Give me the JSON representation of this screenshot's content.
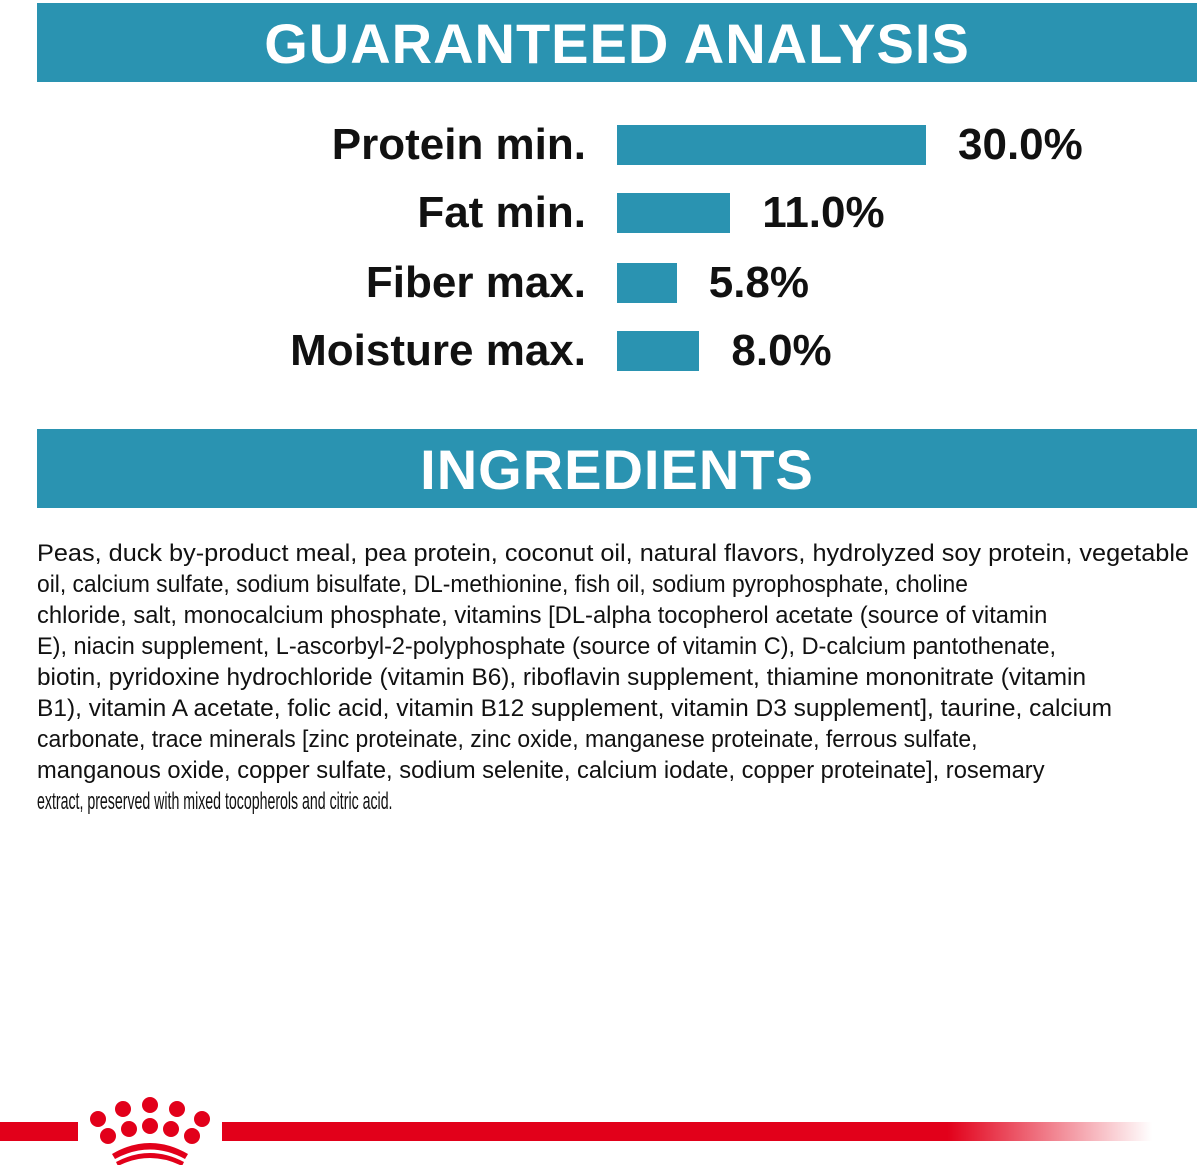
{
  "guaranteed_analysis": {
    "title": "GUARANTEED ANALYSIS"
  },
  "chart_data": {
    "type": "bar",
    "orientation": "horizontal",
    "title": "GUARANTEED ANALYSIS",
    "categories": [
      "Protein min.",
      "Fat min.",
      "Fiber max.",
      "Moisture max."
    ],
    "values": [
      30.0,
      11.0,
      5.8,
      8.0
    ],
    "value_labels": [
      "30.0%",
      "11.0%",
      "5.8%",
      "8.0%"
    ],
    "unit": "%",
    "grid": false,
    "bar_color": "#2a93b1"
  },
  "ingredients": {
    "title": "INGREDIENTS",
    "lines": [
      "Peas, duck by-product meal, pea protein, coconut oil, natural flavors, hydrolyzed soy protein, vegetable",
      "oil, calcium sulfate, sodium bisulfate, DL-methionine, fish oil, sodium pyrophosphate, choline",
      "chloride, salt, monocalcium phosphate, vitamins [DL-alpha tocopherol acetate (source of vitamin",
      "E), niacin supplement, L-ascorbyl-2-polyphosphate (source of vitamin C), D-calcium pantothenate,",
      "biotin, pyridoxine hydrochloride (vitamin B6), riboflavin supplement, thiamine mononitrate (vitamin",
      "B1), vitamin A acetate, folic acid, vitamin B12 supplement, vitamin D3 supplement], taurine, calcium",
      "carbonate, trace minerals [zinc proteinate, zinc oxide, manganese proteinate, ferrous sulfate,",
      "manganous oxide, copper sulfate, sodium selenite, calcium iodate, copper proteinate], rosemary",
      "extract, preserved with mixed tocopherols and citric acid."
    ]
  },
  "footer": {
    "logo": "crown-logo",
    "accent_color": "#e2001a"
  }
}
